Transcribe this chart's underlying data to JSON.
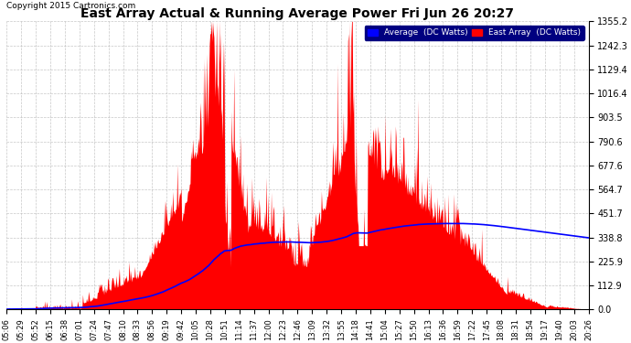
{
  "title": "East Array Actual & Running Average Power Fri Jun 26 20:27",
  "copyright": "Copyright 2015 Cartronics.com",
  "legend_avg": "Average  (DC Watts)",
  "legend_east": "East Array  (DC Watts)",
  "ylabel_values": [
    0.0,
    112.9,
    225.9,
    338.8,
    451.7,
    564.7,
    677.6,
    790.6,
    903.5,
    1016.4,
    1129.4,
    1242.3,
    1355.2
  ],
  "bg_color": "#ffffff",
  "grid_color": "#b0b0b0",
  "fill_color": "#ff0000",
  "avg_line_color": "#0000ff",
  "title_color": "#000000",
  "tick_labels": [
    "05:06",
    "05:29",
    "05:52",
    "06:15",
    "06:38",
    "07:01",
    "07:24",
    "07:47",
    "08:10",
    "08:33",
    "08:56",
    "09:19",
    "09:42",
    "10:05",
    "10:28",
    "10:51",
    "11:14",
    "11:37",
    "12:00",
    "12:23",
    "12:46",
    "13:09",
    "13:32",
    "13:55",
    "14:18",
    "14:41",
    "15:04",
    "15:27",
    "15:50",
    "16:13",
    "16:36",
    "16:59",
    "17:22",
    "17:45",
    "18:08",
    "18:31",
    "18:54",
    "19:17",
    "19:40",
    "20:03",
    "20:26"
  ],
  "ymax": 1355.2,
  "ymin": 0.0
}
